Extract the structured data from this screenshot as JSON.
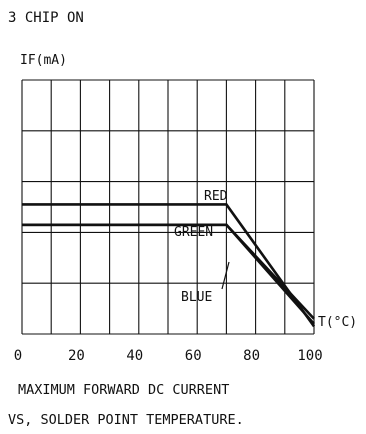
{
  "header": {
    "condition": "3 CHIP ON"
  },
  "caption": {
    "line1": "MAXIMUM FORWARD DC CURRENT",
    "line2": "VS, SOLDER POINT TEMPERATURE."
  },
  "chart_data": {
    "type": "line",
    "title": "",
    "ylabel": "IF(mA)",
    "xlabel": "T(°C)",
    "xlim": [
      0,
      100
    ],
    "x_ticks": [
      0,
      20,
      40,
      60,
      80,
      100
    ],
    "y_gridlines": 6,
    "grid": true,
    "series": [
      {
        "name": "RED",
        "x": [
          0,
          70,
          100
        ],
        "y_frac_of_axis": [
          0.51,
          0.51,
          0.03
        ]
      },
      {
        "name": "GREEN",
        "x": [
          0,
          70,
          100
        ],
        "y_frac_of_axis": [
          0.43,
          0.43,
          0.06
        ]
      },
      {
        "name": "BLUE",
        "x": [
          0,
          70,
          100
        ],
        "y_frac_of_axis": [
          0.43,
          0.43,
          0.04
        ]
      }
    ]
  }
}
